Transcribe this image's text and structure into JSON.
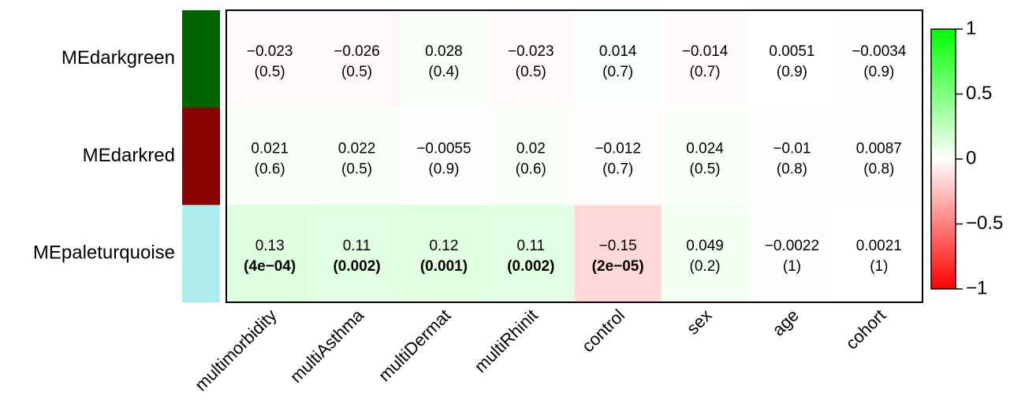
{
  "chart_data": {
    "type": "heatmap",
    "title": "",
    "rows": [
      "MEdarkgreen",
      "MEdarkred",
      "MEpaleturquoise"
    ],
    "row_colors": [
      "#006400",
      "#8B0000",
      "#AFEEEE"
    ],
    "columns": [
      "multimorbidity",
      "multiAsthma",
      "multiDermat",
      "multiRhinit",
      "control",
      "sex",
      "age",
      "cohort"
    ],
    "values": [
      [
        -0.023,
        -0.026,
        0.028,
        -0.023,
        0.014,
        -0.014,
        0.0051,
        -0.0034
      ],
      [
        0.021,
        0.022,
        -0.0055,
        0.02,
        -0.012,
        0.024,
        -0.01,
        0.0087
      ],
      [
        0.13,
        0.11,
        0.12,
        0.11,
        -0.15,
        0.049,
        -0.0022,
        0.0021
      ]
    ],
    "value_labels": [
      [
        "−0.023",
        "−0.026",
        "0.028",
        "−0.023",
        "0.014",
        "−0.014",
        "0.0051",
        "−0.0034"
      ],
      [
        "0.021",
        "0.022",
        "−0.0055",
        "0.02",
        "−0.012",
        "0.024",
        "−0.01",
        "0.0087"
      ],
      [
        "0.13",
        "0.11",
        "0.12",
        "0.11",
        "−0.15",
        "0.049",
        "−0.0022",
        "0.0021"
      ]
    ],
    "pvalue_labels": [
      [
        "(0.5)",
        "(0.5)",
        "(0.4)",
        "(0.5)",
        "(0.7)",
        "(0.7)",
        "(0.9)",
        "(0.9)"
      ],
      [
        "(0.6)",
        "(0.5)",
        "(0.9)",
        "(0.6)",
        "(0.7)",
        "(0.5)",
        "(0.8)",
        "(0.8)"
      ],
      [
        "(4e−04)",
        "(0.002)",
        "(0.001)",
        "(0.002)",
        "(2e−05)",
        "(0.2)",
        "(1)",
        "(1)"
      ]
    ],
    "significant": [
      [
        false,
        false,
        false,
        false,
        false,
        false,
        false,
        false
      ],
      [
        false,
        false,
        false,
        false,
        false,
        false,
        false,
        false
      ],
      [
        true,
        true,
        true,
        true,
        true,
        false,
        false,
        false
      ]
    ],
    "colorbar": {
      "range": [
        -1,
        1
      ],
      "ticks": [
        1,
        0.5,
        0,
        -0.5,
        -1
      ],
      "tick_labels": [
        "1",
        "0.5",
        "0",
        "−0.5",
        "−1"
      ],
      "colors": {
        "low": "#FF0000",
        "mid": "#FFFFFF",
        "high": "#00FF00"
      }
    }
  }
}
